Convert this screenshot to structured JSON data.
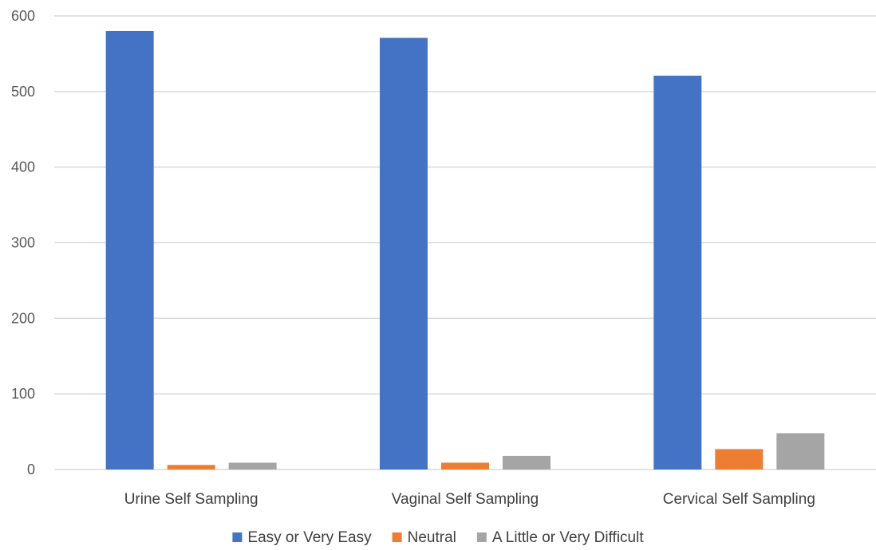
{
  "chart_data": {
    "type": "bar",
    "title": "",
    "xlabel": "",
    "ylabel": "",
    "categories": [
      "Urine Self Sampling",
      "Vaginal Self Sampling",
      "Cervical Self Sampling"
    ],
    "series": [
      {
        "name": "Easy or Very Easy",
        "color": "#4472c4",
        "values": [
          580,
          571,
          521
        ]
      },
      {
        "name": "Neutral",
        "color": "#ed7d31",
        "values": [
          6,
          9,
          27
        ]
      },
      {
        "name": "A Little or Very Difficult",
        "color": "#a5a5a5",
        "values": [
          9,
          18,
          48
        ]
      }
    ],
    "ylim": [
      0,
      600
    ],
    "yticks": [
      "0",
      "100",
      "200",
      "300",
      "400",
      "500",
      "600"
    ],
    "grid": true,
    "legend": "bottom"
  }
}
